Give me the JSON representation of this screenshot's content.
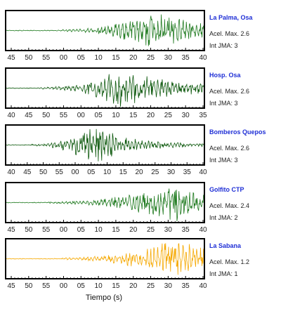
{
  "chart_data": {
    "type": "line",
    "xlabel": "Tiempo (s)",
    "panels": [
      {
        "station": "La Palma, Osa",
        "acel_label": "Acel. Max. 2.6",
        "int_label": "Int JMA: 3",
        "color": "#1f7a1f",
        "tick_labels": [
          "45",
          "50",
          "55",
          "00",
          "05",
          "10",
          "15",
          "20",
          "25",
          "30",
          "35",
          "40"
        ],
        "tick_offset_sec": 0,
        "ticks_per_label": 5,
        "onset_sec": 15,
        "peak_sec": 43,
        "peak_amp": 1.0,
        "decay": 12,
        "seed": 3
      },
      {
        "station": "Hosp. Osa",
        "acel_label": "Acel. Max. 2.6",
        "int_label": "Int JMA: 3",
        "color": "#0f5a0f",
        "tick_labels": [
          "40",
          "45",
          "50",
          "55",
          "00",
          "05",
          "10",
          "15",
          "20",
          "25",
          "30",
          "35"
        ],
        "tick_offset_sec": 0,
        "ticks_per_label": 5,
        "onset_sec": 10,
        "peak_sec": 33,
        "peak_amp": 1.0,
        "decay": 16,
        "seed": 7
      },
      {
        "station": "Bomberos Quepos",
        "acel_label": "Acel. Max. 2.6",
        "int_label": "Int JMA: 3",
        "color": "#0f5a0f",
        "tick_labels": [
          "40",
          "45",
          "50",
          "55",
          "00",
          "05",
          "10",
          "15",
          "20",
          "25",
          "30",
          "35",
          "40"
        ],
        "tick_offset_sec": 0,
        "ticks_per_label": 5,
        "onset_sec": 8,
        "peak_sec": 28,
        "peak_amp": 1.0,
        "decay": 10,
        "seed": 11
      },
      {
        "station": "Golfito CTP",
        "acel_label": "Acel. Max. 2.4",
        "int_label": "Int JMA: 2",
        "color": "#1f7a1f",
        "tick_labels": [
          "45",
          "50",
          "55",
          "00",
          "05",
          "10",
          "15",
          "20",
          "25",
          "30",
          "35",
          "40"
        ],
        "tick_offset_sec": 0,
        "ticks_per_label": 5,
        "onset_sec": 12,
        "peak_sec": 49,
        "peak_amp": 1.0,
        "decay": 9,
        "seed": 17
      },
      {
        "station": "La Sabana",
        "acel_label": "Acel. Max. 1.2",
        "int_label": "Int JMA: 1",
        "color": "#f5a800",
        "tick_labels": [
          "45",
          "50",
          "55",
          "00",
          "05",
          "10",
          "15",
          "20",
          "25",
          "30",
          "35",
          "40"
        ],
        "tick_offset_sec": 0,
        "ticks_per_label": 5,
        "onset_sec": 16,
        "peak_sec": 47,
        "peak_amp": 1.0,
        "decay": 18,
        "seed": 23
      }
    ]
  }
}
